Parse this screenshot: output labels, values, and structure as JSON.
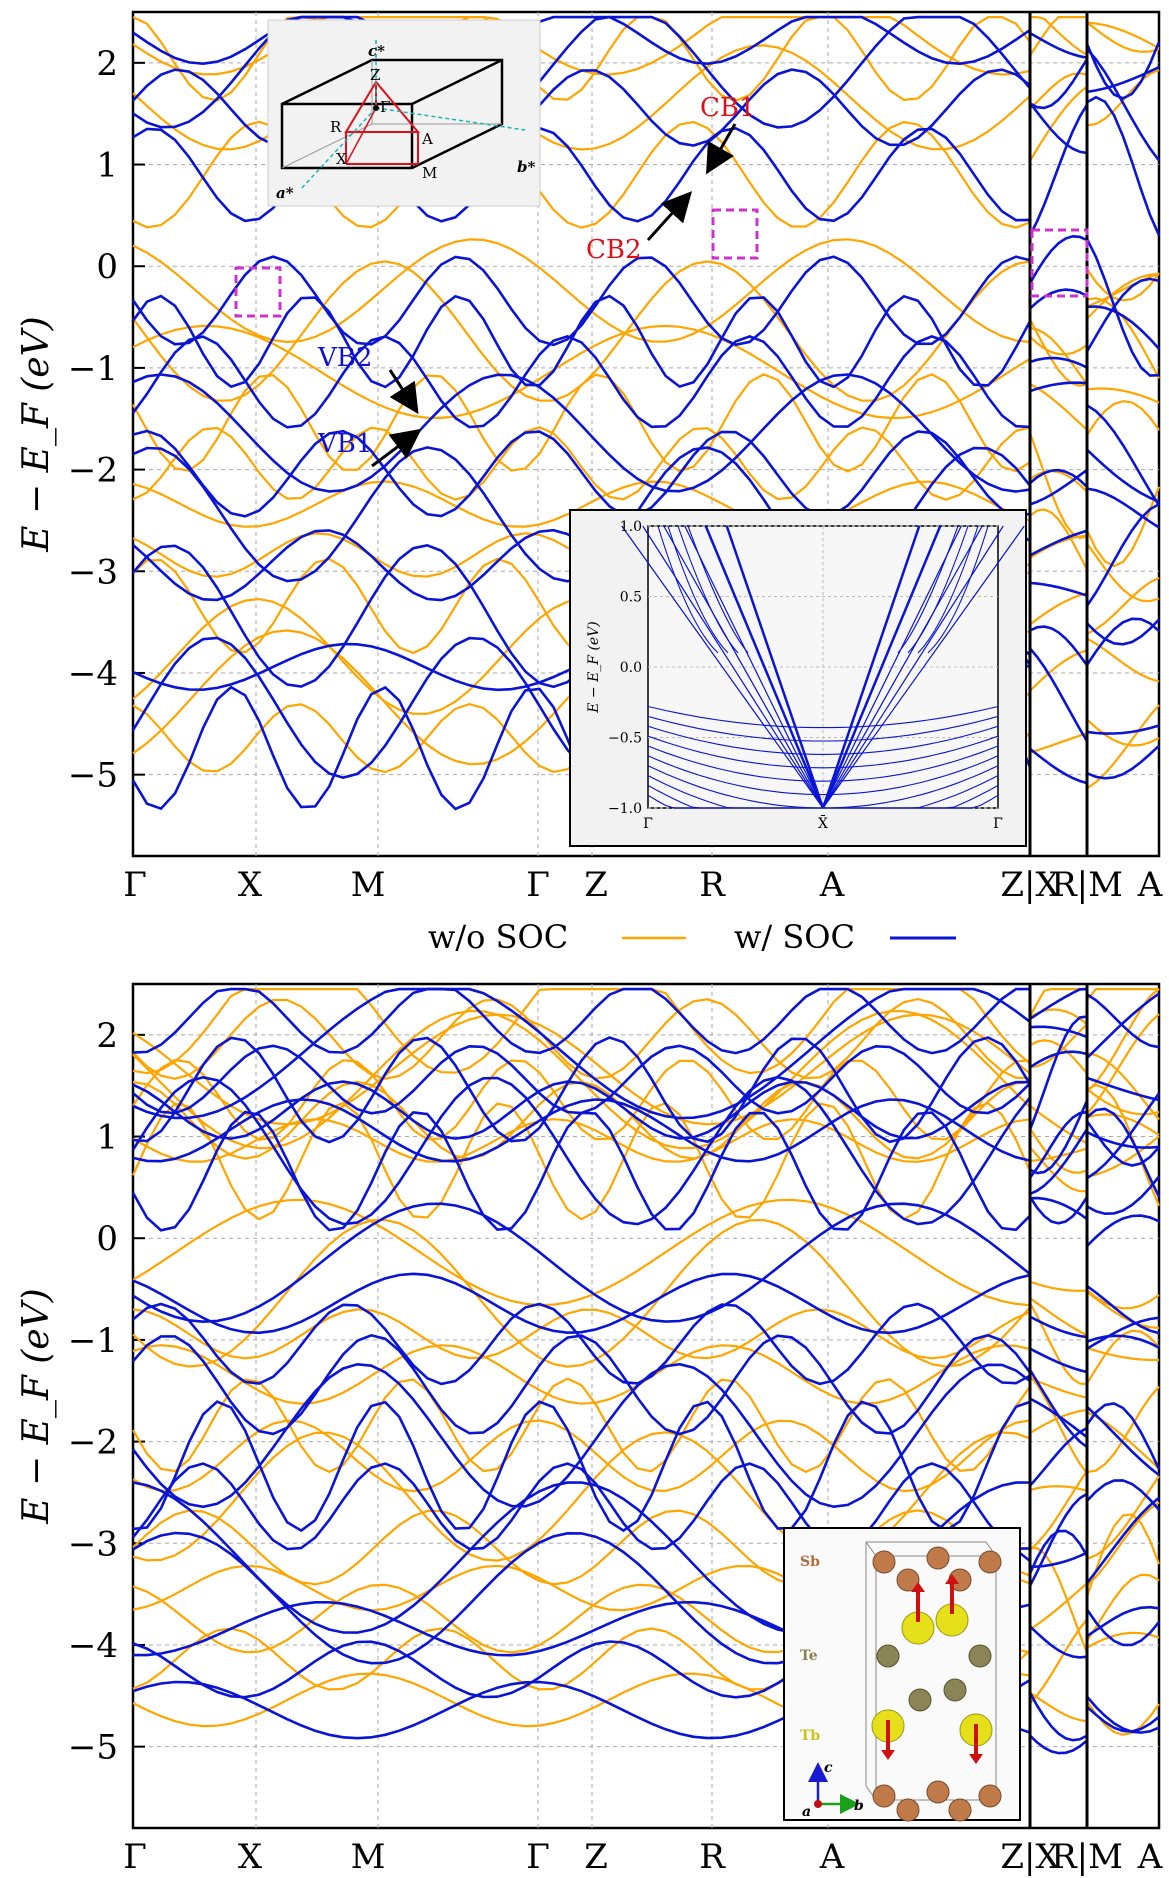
{
  "legend": {
    "without_soc": "w/o SOC",
    "with_soc": "w/ SOC"
  },
  "colors": {
    "without_soc": "#ffa500",
    "with_soc": "#0a14d4",
    "annotation_red": "#e0101a",
    "annotation_blue": "#1010d0",
    "highlight_box": "#cc33cc"
  },
  "annotations": {
    "cb1": "CB1",
    "cb2": "CB2",
    "vb1": "VB1",
    "vb2": "VB2"
  },
  "inset_bz": {
    "a_star": "a*",
    "b_star": "b*",
    "c_star": "c*",
    "points": [
      "Z",
      "Γ",
      "R",
      "X",
      "A",
      "M"
    ]
  },
  "inset_structure": {
    "atoms": [
      "Sb",
      "Te",
      "Tb"
    ],
    "axes": [
      "a",
      "b",
      "c"
    ]
  },
  "chart_data": [
    {
      "type": "line",
      "title": "",
      "xlabel": "",
      "ylabel": "E − E_F (eV)",
      "ylim": [
        -5.8,
        2.5
      ],
      "yticks": [
        "2",
        "1",
        "0",
        "−1",
        "−2",
        "−3",
        "−4",
        "−5"
      ],
      "xticks": [
        "Γ",
        "X",
        "M",
        "Γ",
        "Z",
        "R",
        "A",
        "Z|X",
        "R|M",
        "A"
      ],
      "series": [
        {
          "name": "w/o SOC",
          "values": []
        },
        {
          "name": "w/ SOC",
          "values": []
        }
      ],
      "grid": true
    },
    {
      "type": "line",
      "title": "",
      "xlabel": "",
      "ylabel": "E − E_F (eV)",
      "xlim": [
        "Γ̄",
        "Γ̄"
      ],
      "ylim": [
        -1.0,
        1.0
      ],
      "yticks": [
        "1.0",
        "0.5",
        "0.0",
        "−0.5",
        "−1.0"
      ],
      "xticks": [
        "Γ̄",
        "X̄",
        "Γ̄"
      ],
      "series": [
        {
          "name": "",
          "values": []
        }
      ],
      "grid": true
    },
    {
      "type": "line",
      "title": "",
      "xlabel": "",
      "ylabel": "E − E_F (eV)",
      "ylim": [
        -5.8,
        2.5
      ],
      "yticks": [
        "2",
        "1",
        "0",
        "−1",
        "−2",
        "−3",
        "−4",
        "−5"
      ],
      "xticks": [
        "Γ",
        "X",
        "M",
        "Γ",
        "Z",
        "R",
        "A",
        "Z|X",
        "R|M",
        "A"
      ],
      "series": [
        {
          "name": "w/o SOC",
          "values": []
        },
        {
          "name": "w/ SOC",
          "values": []
        }
      ],
      "grid": true
    }
  ]
}
